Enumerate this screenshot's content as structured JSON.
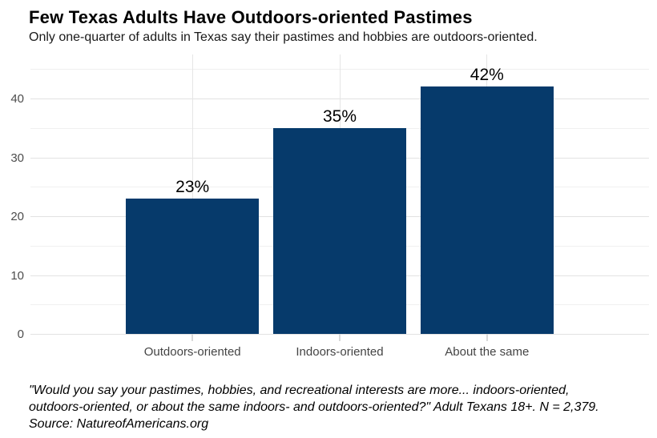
{
  "header": {
    "title": "Few Texas Adults Have Outdoors-oriented Pastimes",
    "subtitle": "Only one-quarter of adults in Texas say their pastimes and hobbies are outdoors-oriented."
  },
  "chart_data": {
    "type": "bar",
    "title": "Few Texas Adults Have Outdoors-oriented Pastimes",
    "subtitle": "Only one-quarter of adults in Texas say their pastimes and hobbies are outdoors-oriented.",
    "categories": [
      "Outdoors-oriented",
      "Indoors-oriented",
      "About the same"
    ],
    "values": [
      23,
      35,
      42
    ],
    "value_labels": [
      "23%",
      "35%",
      "42%"
    ],
    "xlabel": "",
    "ylabel": "",
    "ylim": [
      0,
      47.5
    ],
    "yticks": [
      0,
      10,
      20,
      30,
      40
    ],
    "minor_yticks": [
      5,
      15,
      25,
      35,
      45
    ],
    "grid": "on",
    "legend_position": "none",
    "bar_color": "#063a6b"
  },
  "footer": {
    "lines": [
      "\"Would you say your pastimes, hobbies, and recreational interests are more... indoors-oriented,",
      "outdoors-oriented, or about the same indoors- and outdoors-oriented?\" Adult Texans 18+. N = 2,379.",
      "Source: NatureofAmericans.org"
    ]
  }
}
